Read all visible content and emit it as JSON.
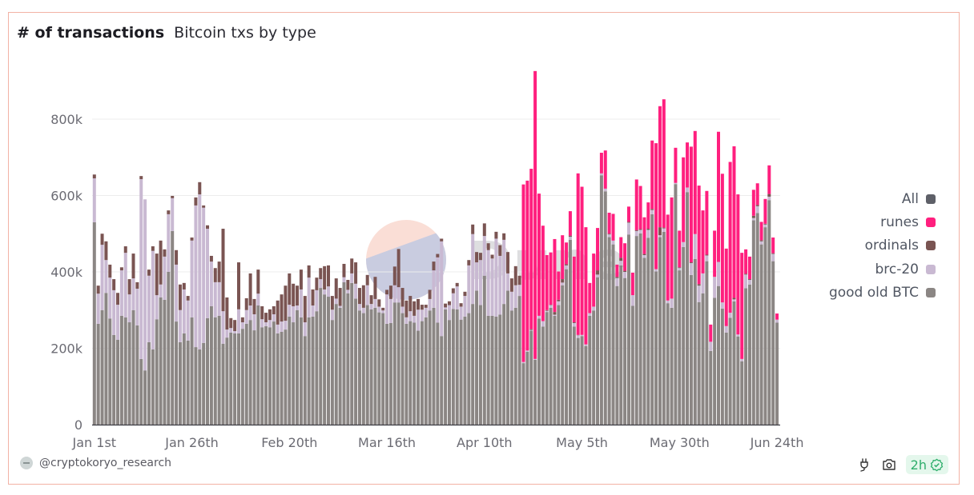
{
  "header": {
    "title": "# of transactions",
    "subtitle": "Bitcoin txs by type"
  },
  "watermark": {
    "logo_text": "Dune"
  },
  "footer": {
    "author": "@cryptokoryo_research",
    "refresh_badge": "2h",
    "icons": [
      "plug-icon",
      "camera-icon",
      "check-badge-icon"
    ]
  },
  "legend": [
    {
      "label": "All",
      "color": "#5e6068"
    },
    {
      "label": "runes",
      "color": "#ff1f7e"
    },
    {
      "label": "ordinals",
      "color": "#7a5452"
    },
    {
      "label": "brc-20",
      "color": "#c9b9d2"
    },
    {
      "label": "good old BTC",
      "color": "#8b8684"
    }
  ],
  "chart_data": {
    "type": "bar",
    "stacked": true,
    "title": "# of transactions",
    "subtitle": "Bitcoin txs by type",
    "xlabel": "",
    "ylabel": "",
    "value_unit": "thousands of transactions per day",
    "x_start": "2024-01-01",
    "x_count": 176,
    "x_tick_labels": [
      {
        "label": "Jan 1st",
        "index": 0
      },
      {
        "label": "Jan 26th",
        "index": 25
      },
      {
        "label": "Feb 20th",
        "index": 50
      },
      {
        "label": "Mar 16th",
        "index": 75
      },
      {
        "label": "Apr 10th",
        "index": 100
      },
      {
        "label": "May 5th",
        "index": 125
      },
      {
        "label": "May 30th",
        "index": 150
      },
      {
        "label": "Jun 24th",
        "index": 175
      }
    ],
    "y_ticks": [
      {
        "value": 0,
        "label": "0"
      },
      {
        "value": 200,
        "label": "200k"
      },
      {
        "value": 400,
        "label": "400k"
      },
      {
        "value": 600,
        "label": "600k"
      },
      {
        "value": 800,
        "label": "800k"
      }
    ],
    "ylim": [
      0,
      1000
    ],
    "grid": true,
    "legend_position": "right",
    "series": [
      {
        "name": "good old BTC",
        "color": "#8b8684",
        "values": [
          530,
          264,
          300,
          345,
          278,
          235,
          222,
          285,
          281,
          268,
          300,
          260,
          172,
          142,
          216,
          197,
          276,
          333,
          327,
          400,
          507,
          270,
          216,
          239,
          220,
          281,
          203,
          197,
          214,
          279,
          310,
          281,
          285,
          212,
          228,
          241,
          239,
          239,
          251,
          264,
          274,
          247,
          312,
          255,
          258,
          255,
          270,
          239,
          243,
          249,
          283,
          268,
          300,
          281,
          232,
          281,
          283,
          297,
          358,
          341,
          335,
          274,
          316,
          306,
          373,
          344,
          371,
          330,
          299,
          292,
          313,
          302,
          306,
          294,
          292,
          264,
          266,
          320,
          320,
          292,
          264,
          271,
          267,
          246,
          271,
          281,
          299,
          306,
          267,
          232,
          302,
          274,
          303,
          302,
          275,
          283,
          292,
          316,
          351,
          313,
          390,
          285,
          285,
          283,
          288,
          316,
          351,
          299,
          306,
          337,
          161,
          191,
          246,
          170,
          278,
          257,
          295,
          306,
          285,
          313,
          365,
          407,
          484,
          257,
          227,
          232,
          206,
          285,
          299,
          386,
          653,
          611,
          491,
          472,
          363,
          417,
          384,
          498,
          311,
          494,
          501,
          437,
          489,
          551,
          401,
          491,
          505,
          318,
          306,
          630,
          404,
          465,
          609,
          392,
          434,
          321,
          344,
          428,
          193,
          332,
          363,
          304,
          241,
          280,
          323,
          231,
          166,
          357,
          367,
          535,
          554,
          472,
          517,
          588,
          428,
          267
        ]
      },
      {
        "name": "brc-20",
        "color": "#c9b9d2",
        "values": [
          115,
          79,
          171,
          86,
          107,
          117,
          92,
          119,
          169,
          73,
          83,
          96,
          471,
          448,
          174,
          258,
          63,
          34,
          113,
          151,
          86,
          149,
          84,
          115,
          105,
          201,
          371,
          406,
          354,
          234,
          117,
          92,
          88,
          85,
          21,
          12,
          6,
          63,
          17,
          36,
          38,
          42,
          31,
          21,
          10,
          19,
          19,
          23,
          27,
          23,
          31,
          42,
          12,
          73,
          36,
          104,
          29,
          55,
          23,
          13,
          27,
          27,
          14,
          5,
          13,
          9,
          25,
          39,
          17,
          14,
          52,
          14,
          23,
          15,
          7,
          77,
          63,
          45,
          40,
          17,
          17,
          26,
          18,
          55,
          30,
          25,
          30,
          98,
          171,
          248,
          5,
          39,
          41,
          60,
          34,
          54,
          125,
          183,
          74,
          118,
          104,
          172,
          150,
          204,
          154,
          168,
          45,
          49,
          59,
          29,
          3,
          3,
          2,
          2,
          7,
          14,
          3,
          7,
          3,
          10,
          7,
          10,
          8,
          9,
          7,
          3,
          4,
          7,
          10,
          7,
          5,
          7,
          7,
          10,
          21,
          12,
          16,
          31,
          28,
          13,
          9,
          7,
          21,
          11,
          6,
          5,
          9,
          7,
          24,
          3,
          6,
          13,
          12,
          31,
          65,
          43,
          52,
          15,
          24,
          55,
          63,
          16,
          17,
          13,
          5,
          5,
          6,
          36,
          12,
          6,
          18,
          8,
          7,
          9,
          19,
          8
        ]
      },
      {
        "name": "ordinals",
        "color": "#7a5452",
        "values": [
          10,
          21,
          29,
          49,
          34,
          29,
          31,
          8,
          17,
          40,
          65,
          17,
          8,
          0,
          16,
          12,
          109,
          115,
          19,
          10,
          6,
          38,
          67,
          17,
          12,
          8,
          21,
          32,
          6,
          9,
          15,
          37,
          54,
          216,
          84,
          26,
          29,
          123,
          13,
          31,
          84,
          40,
          63,
          34,
          25,
          28,
          21,
          63,
          71,
          92,
          82,
          59,
          52,
          52,
          69,
          32,
          42,
          33,
          29,
          61,
          55,
          36,
          53,
          47,
          35,
          26,
          39,
          56,
          42,
          59,
          27,
          23,
          58,
          19,
          7,
          12,
          35,
          49,
          100,
          49,
          44,
          40,
          38,
          28,
          13,
          8,
          24,
          23,
          9,
          7,
          10,
          10,
          13,
          9,
          9,
          11,
          14,
          25,
          27,
          19,
          33,
          18,
          10,
          18,
          28,
          17,
          56,
          35,
          50,
          24,
          0,
          0,
          2,
          0,
          0,
          0,
          2,
          1,
          7,
          4,
          9,
          3,
          3,
          2,
          1,
          0,
          0,
          0,
          0,
          11,
          0,
          0,
          2,
          0,
          3,
          8,
          3,
          2,
          0,
          2,
          2,
          3,
          3,
          3,
          0,
          21,
          2,
          0,
          0,
          0,
          2,
          0,
          0,
          2,
          0,
          4,
          0,
          2,
          0,
          0,
          0,
          0,
          0,
          0,
          4,
          0,
          0,
          2,
          2,
          6,
          3,
          3,
          2,
          7,
          2,
          0
        ]
      },
      {
        "name": "runes",
        "color": "#ff1f7e",
        "values": [
          0,
          0,
          0,
          0,
          0,
          0,
          0,
          0,
          0,
          0,
          0,
          0,
          0,
          0,
          0,
          0,
          0,
          0,
          0,
          0,
          0,
          0,
          0,
          0,
          0,
          0,
          0,
          0,
          0,
          0,
          0,
          0,
          0,
          0,
          0,
          0,
          0,
          0,
          0,
          0,
          0,
          0,
          0,
          0,
          0,
          0,
          0,
          0,
          0,
          0,
          0,
          0,
          0,
          0,
          0,
          0,
          0,
          0,
          0,
          0,
          0,
          0,
          0,
          0,
          0,
          0,
          0,
          0,
          0,
          0,
          0,
          0,
          0,
          0,
          0,
          0,
          0,
          0,
          0,
          0,
          0,
          0,
          0,
          0,
          0,
          0,
          0,
          0,
          0,
          0,
          0,
          0,
          0,
          0,
          0,
          0,
          0,
          0,
          0,
          0,
          0,
          0,
          0,
          0,
          0,
          0,
          0,
          0,
          0,
          0,
          465,
          445,
          420,
          754,
          320,
          250,
          144,
          137,
          191,
          74,
          115,
          57,
          64,
          172,
          423,
          388,
          307,
          79,
          139,
          111,
          54,
          100,
          55,
          70,
          32,
          54,
          72,
          40,
          59,
          133,
          113,
          96,
          69,
          179,
          330,
          317,
          336,
          225,
          265,
          92,
          96,
          222,
          118,
          303,
          270,
          258,
          165,
          167,
          45,
          121,
          341,
          337,
          203,
          395,
          397,
          367,
          278,
          64,
          59,
          68,
          57,
          48,
          65,
          75,
          41,
          16
        ]
      }
    ]
  }
}
